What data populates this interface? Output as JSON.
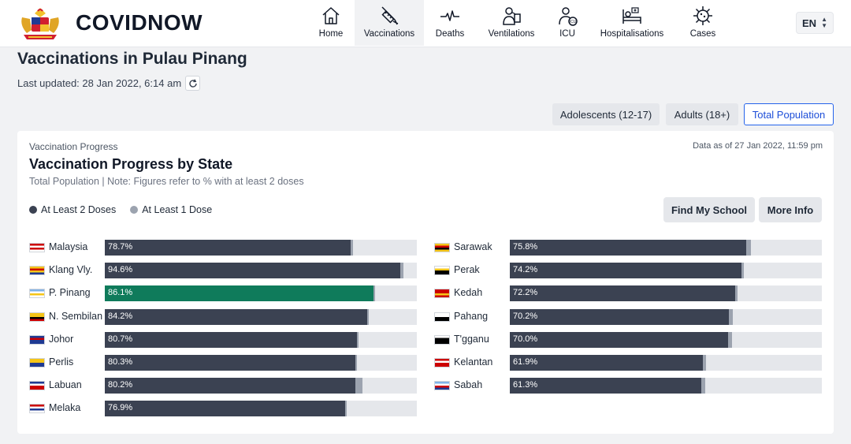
{
  "header": {
    "brand": "COVIDNOW",
    "nav": [
      {
        "label": "Home",
        "icon": "home-icon",
        "active": false
      },
      {
        "label": "Vaccinations",
        "icon": "syringe-icon",
        "active": true
      },
      {
        "label": "Deaths",
        "icon": "pulse-icon",
        "active": false
      },
      {
        "label": "Ventilations",
        "icon": "ventilator-icon",
        "active": false
      },
      {
        "label": "ICU",
        "icon": "icu-icon",
        "active": false
      },
      {
        "label": "Hospitalisations",
        "icon": "hospital-bed-icon",
        "active": false
      },
      {
        "label": "Cases",
        "icon": "virus-icon",
        "active": false
      }
    ],
    "language": "EN"
  },
  "page": {
    "title": "Vaccinations in Pulau Pinang",
    "last_updated": "Last updated: 28 Jan 2022, 6:14 am"
  },
  "population_toggle": [
    {
      "label": "Adolescents (12-17)",
      "active": false
    },
    {
      "label": "Adults (18+)",
      "active": false
    },
    {
      "label": "Total Population",
      "active": true
    }
  ],
  "card": {
    "subtitle": "Vaccination Progress",
    "title": "Vaccination Progress by State",
    "note": "Total Population | Note: Figures refer to % with at least 2 doses",
    "as_of": "Data as of 27 Jan 2022, 11:59 pm",
    "legend": [
      {
        "label": "At Least 2 Doses",
        "color": "#3b4252"
      },
      {
        "label": "At Least 1 Dose",
        "color": "#9ca3af"
      }
    ],
    "buttons": {
      "find_school": "Find My School",
      "more_info": "More Info"
    }
  },
  "chart_data": {
    "type": "bar",
    "orientation": "horizontal",
    "unit": "%",
    "xlim": [
      0,
      100
    ],
    "highlight": "P. Pinang",
    "highlight_color": "#0f7b5b",
    "series": [
      {
        "name": "At Least 2 Doses",
        "color": "#3b4252"
      },
      {
        "name": "At Least 1 Dose",
        "color": "#9ca3af"
      }
    ],
    "left_column": [
      {
        "state": "Malaysia",
        "dose2": 78.7,
        "dose1": 79.5,
        "label": "78.7%"
      },
      {
        "state": "Klang Vly.",
        "dose2": 94.6,
        "dose1": 95.6,
        "label": "94.6%"
      },
      {
        "state": "P. Pinang",
        "dose2": 86.1,
        "dose1": 86.7,
        "label": "86.1%"
      },
      {
        "state": "N. Sembilan",
        "dose2": 84.2,
        "dose1": 84.7,
        "label": "84.2%"
      },
      {
        "state": "Johor",
        "dose2": 80.7,
        "dose1": 81.4,
        "label": "80.7%"
      },
      {
        "state": "Perlis",
        "dose2": 80.3,
        "dose1": 80.9,
        "label": "80.3%"
      },
      {
        "state": "Labuan",
        "dose2": 80.2,
        "dose1": 82.7,
        "label": "80.2%"
      },
      {
        "state": "Melaka",
        "dose2": 76.9,
        "dose1": 77.4,
        "label": "76.9%"
      }
    ],
    "right_column": [
      {
        "state": "Sarawak",
        "dose2": 75.8,
        "dose1": 77.3,
        "label": "75.8%"
      },
      {
        "state": "Perak",
        "dose2": 74.2,
        "dose1": 75.1,
        "label": "74.2%"
      },
      {
        "state": "Kedah",
        "dose2": 72.2,
        "dose1": 73.0,
        "label": "72.2%"
      },
      {
        "state": "Pahang",
        "dose2": 70.2,
        "dose1": 71.5,
        "label": "70.2%"
      },
      {
        "state": "T'gganu",
        "dose2": 70.0,
        "dose1": 71.3,
        "label": "70.0%"
      },
      {
        "state": "Kelantan",
        "dose2": 61.9,
        "dose1": 63.0,
        "label": "61.9%"
      },
      {
        "state": "Sabah",
        "dose2": 61.3,
        "dose1": 62.6,
        "label": "61.3%"
      }
    ]
  }
}
